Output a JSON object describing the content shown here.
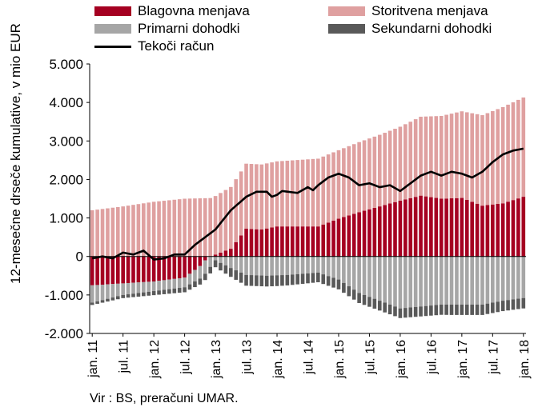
{
  "chart_data": {
    "type": "bar",
    "stacked": true,
    "title": "",
    "ylabel": "12-mesečne drseče kumulative, v mio EUR",
    "ylim": [
      -2000,
      5000
    ],
    "yticks": [
      "5.000",
      "4.000",
      "3.000",
      "2.000",
      "1.000",
      "0",
      "-1.000",
      "-2.000"
    ],
    "ytick_values": [
      5000,
      4000,
      3000,
      2000,
      1000,
      0,
      -1000,
      -2000
    ],
    "xtick_labels": [
      "jan. 11",
      "jul. 11",
      "jan. 12",
      "jul. 12",
      "jan. 13",
      "jul. 13",
      "jan. 14",
      "jul. 14",
      "jan. 15",
      "jul. 15",
      "jan. 16",
      "jul. 16",
      "jan. 17",
      "jul. 17",
      "jan. 18"
    ],
    "xtick_index": [
      0,
      6,
      12,
      18,
      24,
      30,
      36,
      42,
      48,
      54,
      60,
      66,
      72,
      78,
      84
    ],
    "n_months": 85,
    "grid": false,
    "legend_position": "top",
    "series": [
      {
        "name": "Blagovna menjava",
        "kind": "bar",
        "color": "#A50021",
        "anchors": [
          [
            0,
            -750
          ],
          [
            6,
            -700
          ],
          [
            12,
            -650
          ],
          [
            18,
            -550
          ],
          [
            21,
            -250
          ],
          [
            22,
            -100
          ],
          [
            23,
            0
          ],
          [
            24,
            50
          ],
          [
            27,
            200
          ],
          [
            30,
            720
          ],
          [
            33,
            700
          ],
          [
            36,
            780
          ],
          [
            40,
            780
          ],
          [
            44,
            780
          ],
          [
            48,
            980
          ],
          [
            52,
            1150
          ],
          [
            56,
            1300
          ],
          [
            60,
            1450
          ],
          [
            64,
            1580
          ],
          [
            68,
            1500
          ],
          [
            72,
            1520
          ],
          [
            76,
            1320
          ],
          [
            80,
            1380
          ],
          [
            84,
            1550
          ]
        ]
      },
      {
        "name": "Storitvena menjava",
        "kind": "bar",
        "color": "#DFA0A0",
        "anchors": [
          [
            0,
            1200
          ],
          [
            6,
            1300
          ],
          [
            12,
            1420
          ],
          [
            18,
            1500
          ],
          [
            24,
            1520
          ],
          [
            30,
            1690
          ],
          [
            36,
            1690
          ],
          [
            44,
            1760
          ],
          [
            48,
            1780
          ],
          [
            56,
            1860
          ],
          [
            60,
            1920
          ],
          [
            64,
            2050
          ],
          [
            68,
            2150
          ],
          [
            72,
            2250
          ],
          [
            76,
            2350
          ],
          [
            80,
            2500
          ],
          [
            84,
            2580
          ]
        ]
      },
      {
        "name": "Primarni dohodki",
        "kind": "bar",
        "color": "#A6A6A6",
        "anchors": [
          [
            0,
            -450
          ],
          [
            6,
            -300
          ],
          [
            12,
            -250
          ],
          [
            18,
            -250
          ],
          [
            22,
            -350
          ],
          [
            23,
            -270
          ],
          [
            24,
            -100
          ],
          [
            27,
            -300
          ],
          [
            30,
            -480
          ],
          [
            34,
            -500
          ],
          [
            38,
            -480
          ],
          [
            44,
            -420
          ],
          [
            48,
            -600
          ],
          [
            52,
            -950
          ],
          [
            56,
            -1150
          ],
          [
            60,
            -1350
          ],
          [
            64,
            -1300
          ],
          [
            68,
            -1250
          ],
          [
            72,
            -1250
          ],
          [
            76,
            -1250
          ],
          [
            80,
            -1150
          ],
          [
            84,
            -1080
          ]
        ]
      },
      {
        "name": "Sekundarni dohodki",
        "kind": "bar",
        "color": "#595959",
        "anchors": [
          [
            0,
            -60
          ],
          [
            8,
            -90
          ],
          [
            18,
            -130
          ],
          [
            24,
            -180
          ],
          [
            30,
            -280
          ],
          [
            36,
            -280
          ],
          [
            44,
            -250
          ],
          [
            52,
            -260
          ],
          [
            60,
            -250
          ],
          [
            70,
            -270
          ],
          [
            84,
            -270
          ]
        ]
      },
      {
        "name": "Tekoči račun",
        "kind": "line",
        "color": "#000000",
        "anchors": [
          [
            0,
            -50
          ],
          [
            2,
            0
          ],
          [
            4,
            -50
          ],
          [
            6,
            100
          ],
          [
            8,
            50
          ],
          [
            10,
            150
          ],
          [
            12,
            -80
          ],
          [
            14,
            -50
          ],
          [
            16,
            50
          ],
          [
            18,
            50
          ],
          [
            20,
            300
          ],
          [
            24,
            700
          ],
          [
            27,
            1200
          ],
          [
            30,
            1550
          ],
          [
            32,
            1680
          ],
          [
            34,
            1680
          ],
          [
            35,
            1550
          ],
          [
            36,
            1600
          ],
          [
            37,
            1700
          ],
          [
            40,
            1650
          ],
          [
            42,
            1800
          ],
          [
            43,
            1720
          ],
          [
            44,
            1850
          ],
          [
            46,
            2050
          ],
          [
            48,
            2150
          ],
          [
            50,
            2050
          ],
          [
            51,
            1950
          ],
          [
            52,
            1850
          ],
          [
            54,
            1900
          ],
          [
            56,
            1800
          ],
          [
            58,
            1850
          ],
          [
            60,
            1700
          ],
          [
            61,
            1800
          ],
          [
            62,
            1900
          ],
          [
            64,
            2100
          ],
          [
            66,
            2200
          ],
          [
            68,
            2100
          ],
          [
            69,
            2150
          ],
          [
            70,
            2200
          ],
          [
            72,
            2150
          ],
          [
            74,
            2050
          ],
          [
            76,
            2200
          ],
          [
            78,
            2450
          ],
          [
            80,
            2650
          ],
          [
            82,
            2750
          ],
          [
            84,
            2800
          ]
        ]
      }
    ]
  },
  "legend": {
    "items": [
      {
        "label": "Blagovna menjava",
        "color": "#A50021",
        "kind": "swatch"
      },
      {
        "label": "Storitvena menjava",
        "color": "#DFA0A0",
        "kind": "swatch"
      },
      {
        "label": "Primarni dohodki",
        "color": "#A6A6A6",
        "kind": "swatch"
      },
      {
        "label": "Sekundarni dohodki",
        "color": "#595959",
        "kind": "swatch"
      },
      {
        "label": "Tekoči račun",
        "color": "#000000",
        "kind": "line"
      }
    ]
  },
  "source": "Vir : BS, preračuni  UMAR."
}
